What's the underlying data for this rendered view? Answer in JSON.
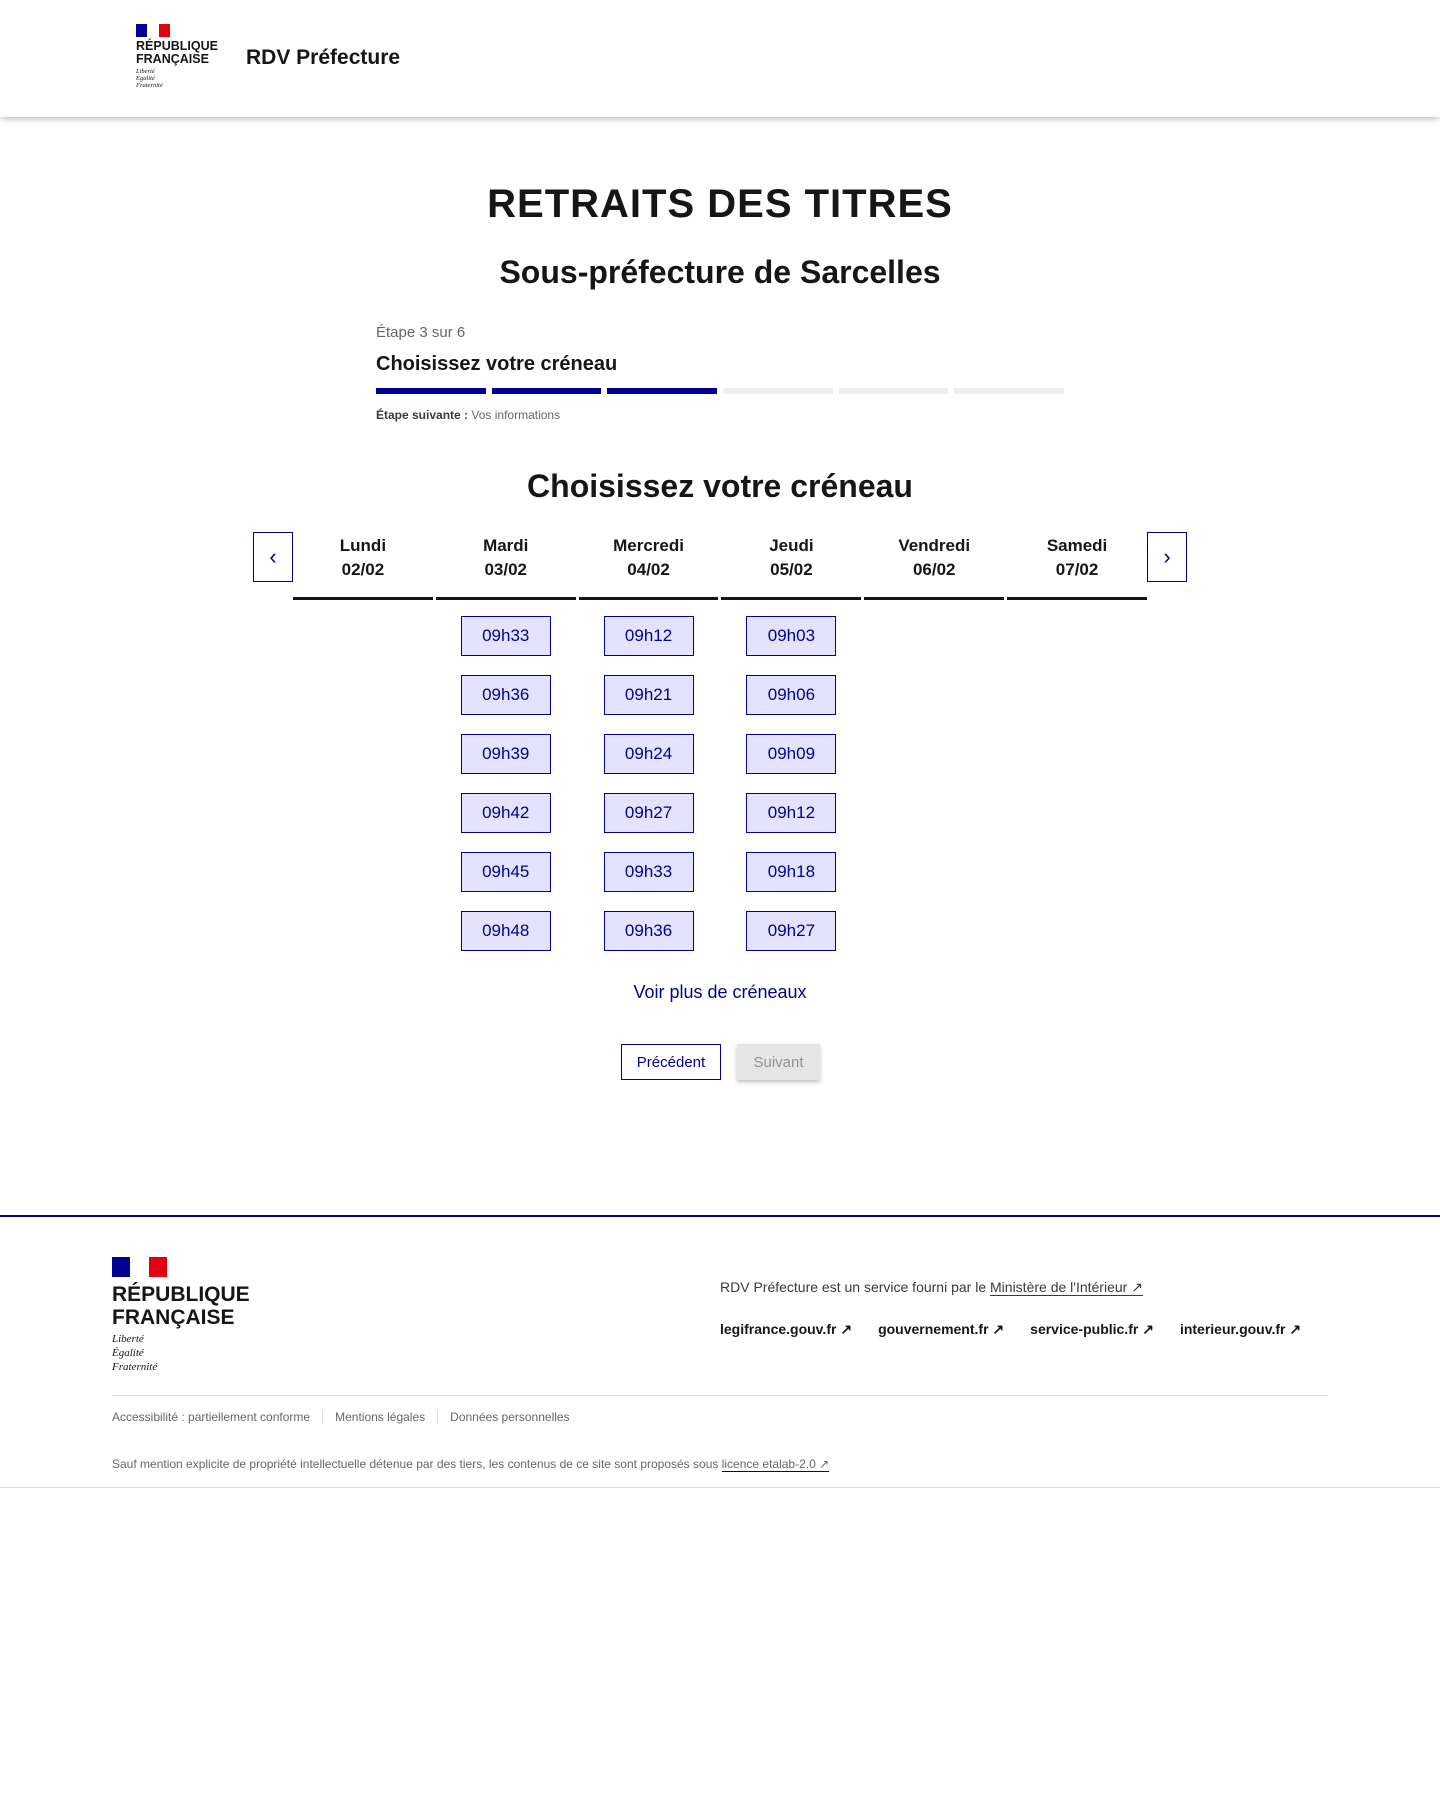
{
  "header": {
    "logo_text": [
      "RÉPUBLIQUE",
      "FRANÇAISE"
    ],
    "devise": [
      "Liberté",
      "Égalité",
      "Fraternité"
    ],
    "service_name": "RDV Préfecture"
  },
  "page": {
    "title": "RETRAITS DES TITRES",
    "subtitle": "Sous-préfecture de Sarcelles"
  },
  "stepper": {
    "step_label": "Étape 3 sur 6",
    "step_title": "Choisissez votre créneau",
    "current": 3,
    "total": 6,
    "next_label": "Étape suivante :",
    "next_value": "Vos informations"
  },
  "calendar": {
    "title": "Choisissez votre créneau",
    "prev_icon": "chevron-left-icon",
    "next_icon": "chevron-right-icon",
    "days": [
      {
        "name": "Lundi",
        "date": "02/02",
        "slots": []
      },
      {
        "name": "Mardi",
        "date": "03/02",
        "slots": [
          "09h33",
          "09h36",
          "09h39",
          "09h42",
          "09h45",
          "09h48"
        ]
      },
      {
        "name": "Mercredi",
        "date": "04/02",
        "slots": [
          "09h12",
          "09h21",
          "09h24",
          "09h27",
          "09h33",
          "09h36"
        ]
      },
      {
        "name": "Jeudi",
        "date": "05/02",
        "slots": [
          "09h03",
          "09h06",
          "09h09",
          "09h12",
          "09h18",
          "09h27"
        ]
      },
      {
        "name": "Vendredi",
        "date": "06/02",
        "slots": []
      },
      {
        "name": "Samedi",
        "date": "07/02",
        "slots": []
      }
    ],
    "more_label": "Voir plus de créneaux"
  },
  "actions": {
    "previous": "Précédent",
    "next": "Suivant"
  },
  "footer": {
    "logo_text": [
      "RÉPUBLIQUE",
      "FRANÇAISE"
    ],
    "devise": [
      "Liberté",
      "Égalité",
      "Fraternité"
    ],
    "description": "RDV Préfecture est un service fourni par le ",
    "ministry_link": "Ministère de l'Intérieur",
    "links": [
      "legifrance.gouv.fr",
      "gouvernement.fr",
      "service-public.fr",
      "interieur.gouv.fr"
    ],
    "bottom_links": [
      "Accessibilité : partiellement conforme",
      "Mentions légales",
      "Données personnelles"
    ],
    "license_text": "Sauf mention explicite de propriété intellectuelle détenue par des tiers, les contenus de ce site sont proposés sous ",
    "license_link": "licence etalab-2.0"
  },
  "colors": {
    "primary": "#000091",
    "slot_bg": "#e3e3fd",
    "flag_red": "#e1000f"
  }
}
